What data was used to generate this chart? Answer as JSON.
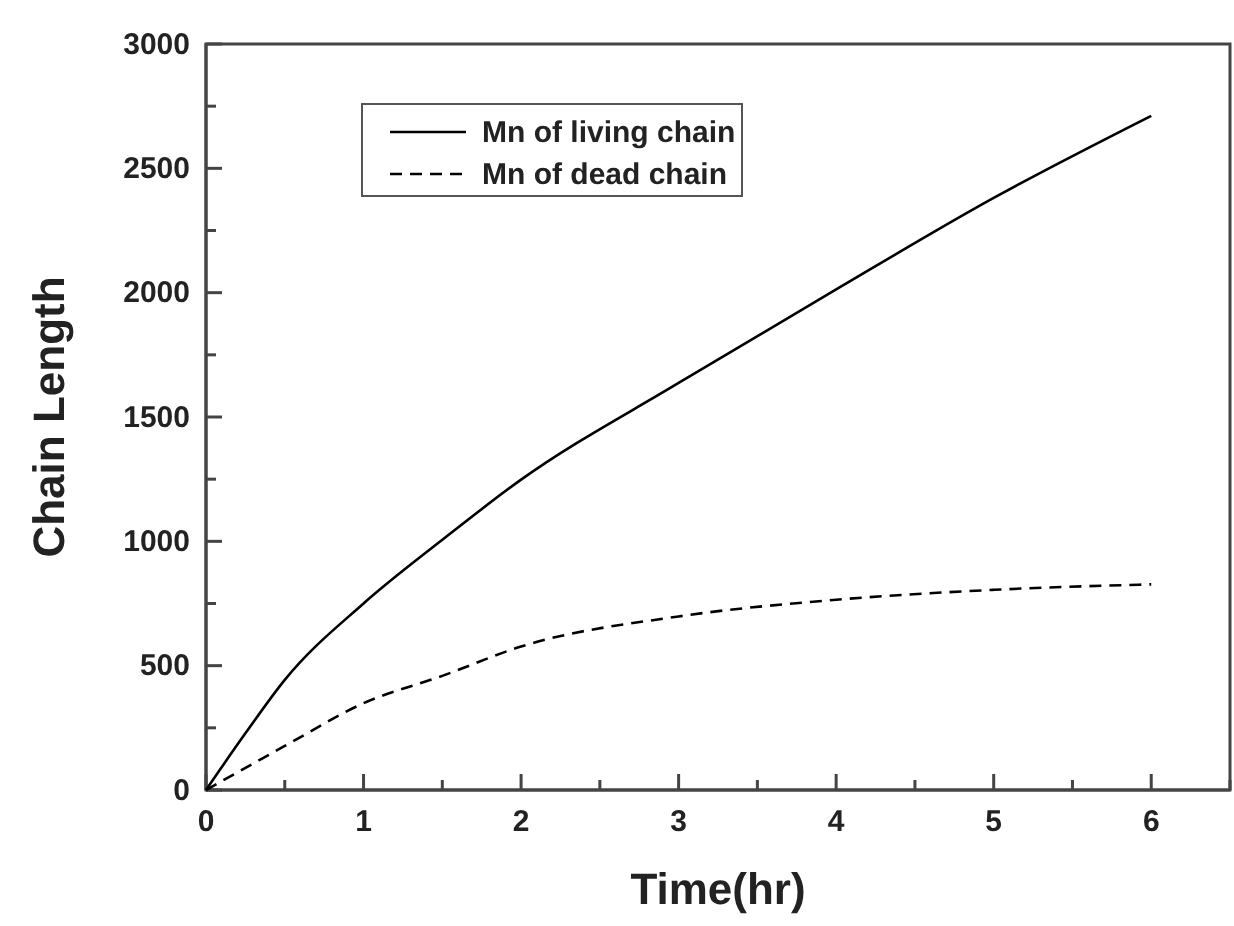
{
  "chart_data": {
    "type": "line",
    "xlabel": "Time(hr)",
    "ylabel": "Chain Length",
    "xlim": [
      0,
      6.5
    ],
    "ylim": [
      0,
      3000
    ],
    "xticks": [
      0,
      {
        "value": 0.5,
        "label": null
      },
      1,
      {
        "value": 1.5,
        "label": null
      },
      2,
      {
        "value": 2.5,
        "label": null
      },
      3,
      {
        "value": 3.5,
        "label": null
      },
      4,
      {
        "value": 4.5,
        "label": null
      },
      5,
      {
        "value": 5.5,
        "label": null
      },
      6,
      {
        "value": 6.5,
        "label": null
      }
    ],
    "yticks": [
      0,
      {
        "value": 250,
        "label": null
      },
      500,
      {
        "value": 750,
        "label": null
      },
      1000,
      {
        "value": 1250,
        "label": null
      },
      1500,
      {
        "value": 1750,
        "label": null
      },
      2000,
      {
        "value": 2250,
        "label": null
      },
      2500,
      {
        "value": 2750,
        "label": null
      },
      3000
    ],
    "legend": "top left",
    "grid": false,
    "marker": "none",
    "series": [
      {
        "name": "Mn of living chain",
        "color": "#000000",
        "line_style": "solid",
        "x": [
          0,
          0.25,
          0.5,
          1,
          1.5,
          2,
          3,
          4,
          5,
          6
        ],
        "values": [
          0,
          228,
          443,
          750,
          1006,
          1248,
          1637,
          2013,
          2381,
          2711
        ]
      },
      {
        "name": "Mn of dead chain",
        "color": "#000000",
        "line_style": "dashed",
        "x": [
          0,
          0.5,
          1,
          1.5,
          2,
          3,
          4,
          5,
          6
        ],
        "values": [
          0,
          177,
          349,
          459,
          577,
          698,
          765,
          805,
          827
        ]
      }
    ]
  }
}
